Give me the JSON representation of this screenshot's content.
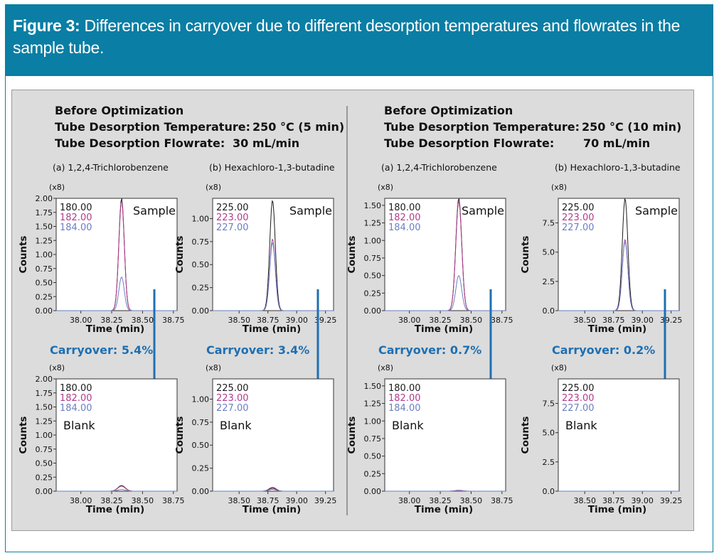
{
  "figure": {
    "label": "Figure 3:",
    "caption": " Differences in carryover due to different desorption temperatures and flowrates in the sample tube."
  },
  "colors": {
    "header_bg": "#0a7ea4",
    "panel_bg": "#dcdcdc",
    "series_180": "#1a1a1a",
    "series_182": "#b33a8c",
    "series_184": "#6a7fc0",
    "arrow": "#1f6fb2",
    "carryover_text": "#1f6fb2"
  },
  "conditions": [
    {
      "heading": "Before Optimization",
      "temp_label": "Tube Desorption Temperature:",
      "temp_value": "250 °C (5 min)",
      "flow_label": "Tube Desorption Flowrate:",
      "flow_value": "30 mL/min"
    },
    {
      "heading": "Before Optimization",
      "temp_label": "Tube Desorption Temperature:",
      "temp_value": "250 °C (10 min)",
      "flow_label": "Tube Desorption Flowrate:",
      "flow_value": "70 mL/min"
    }
  ],
  "chart_data": [
    {
      "id": "c1a-sample",
      "type": "line",
      "compound": "(a) 1,2,4-Trichlorobenzene",
      "panel_label": "Sample",
      "multiplier": "(x8)",
      "ylabel": "Counts",
      "xlabel": "Time (min)",
      "xlim": [
        37.8,
        38.78
      ],
      "ylim": [
        0,
        2.0
      ],
      "xticks": [
        38.0,
        38.25,
        38.5,
        38.75
      ],
      "xtick_labels": [
        "38.00",
        "38.25",
        "38.50",
        "38.75"
      ],
      "yticks": [
        0,
        0.25,
        0.5,
        0.75,
        1.0,
        1.25,
        1.5,
        1.75,
        2.0
      ],
      "ytick_labels": [
        "0.00",
        "0.25",
        "0.50",
        "0.75",
        "1.00",
        "1.25",
        "1.50",
        "1.75",
        "2.00"
      ],
      "peak_center": 38.33,
      "peak_width": 0.022,
      "series": [
        {
          "name": "180.00",
          "color": "#1a1a1a",
          "peak": 2.0
        },
        {
          "name": "182.00",
          "color": "#b33a8c",
          "peak": 1.96
        },
        {
          "name": "184.00",
          "color": "#6a7fc0",
          "peak": 0.6
        }
      ],
      "carryover": "Carryover: 5.4%"
    },
    {
      "id": "c1b-sample",
      "type": "line",
      "compound": "(b) Hexachloro-1,3-butadine",
      "panel_label": "Sample",
      "multiplier": "(x8)",
      "ylabel": "Counts",
      "xlabel": "Time (min)",
      "xlim": [
        38.27,
        39.32
      ],
      "ylim": [
        0,
        1.22
      ],
      "xticks": [
        38.5,
        38.75,
        39.0,
        39.25
      ],
      "xtick_labels": [
        "38.50",
        "38.75",
        "39.00",
        "39.25"
      ],
      "yticks": [
        0,
        0.25,
        0.5,
        0.75,
        1.0
      ],
      "ytick_labels": [
        "0.00",
        "0.25",
        "0.50",
        "0.75",
        "1.00"
      ],
      "peak_center": 38.79,
      "peak_width": 0.024,
      "series": [
        {
          "name": "225.00",
          "color": "#1a1a1a",
          "peak": 1.2
        },
        {
          "name": "223.00",
          "color": "#b33a8c",
          "peak": 0.78
        },
        {
          "name": "227.00",
          "color": "#6a7fc0",
          "peak": 0.74
        }
      ],
      "carryover": "Carryover: 3.4%"
    },
    {
      "id": "c2a-sample",
      "type": "line",
      "compound": "(a) 1,2,4-Trichlorobenzene",
      "panel_label": "Sample",
      "multiplier": "(x8)",
      "ylabel": "Counts",
      "xlabel": "Time (min)",
      "xlim": [
        37.8,
        38.78
      ],
      "ylim": [
        0,
        1.6
      ],
      "xticks": [
        38.0,
        38.25,
        38.5,
        38.75
      ],
      "xtick_labels": [
        "38.00",
        "38.25",
        "38.50",
        "38.75"
      ],
      "yticks": [
        0,
        0.25,
        0.5,
        0.75,
        1.0,
        1.25,
        1.5
      ],
      "ytick_labels": [
        "0.00",
        "0.25",
        "0.50",
        "0.75",
        "1.00",
        "1.25",
        "1.50"
      ],
      "peak_center": 38.4,
      "peak_width": 0.024,
      "series": [
        {
          "name": "180.00",
          "color": "#1a1a1a",
          "peak": 1.6
        },
        {
          "name": "182.00",
          "color": "#b33a8c",
          "peak": 1.56
        },
        {
          "name": "184.00",
          "color": "#6a7fc0",
          "peak": 0.5
        }
      ],
      "carryover": "Carryover: 0.7%"
    },
    {
      "id": "c2b-sample",
      "type": "line",
      "compound": "(b) Hexachloro-1,3-butadine",
      "panel_label": "Sample",
      "multiplier": "(x8)",
      "ylabel": "Counts",
      "xlabel": "Time (min)",
      "xlim": [
        38.27,
        39.32
      ],
      "ylim": [
        0,
        9.6
      ],
      "xticks": [
        38.5,
        38.75,
        39.0,
        39.25
      ],
      "xtick_labels": [
        "38.50",
        "38.75",
        "39.00",
        "39.25"
      ],
      "yticks": [
        0,
        2.5,
        5.0,
        7.5
      ],
      "ytick_labels": [
        "0.0",
        "2.5",
        "5.0",
        "7.5"
      ],
      "peak_center": 38.85,
      "peak_width": 0.024,
      "series": [
        {
          "name": "225.00",
          "color": "#1a1a1a",
          "peak": 9.6
        },
        {
          "name": "223.00",
          "color": "#b33a8c",
          "peak": 6.1
        },
        {
          "name": "227.00",
          "color": "#6a7fc0",
          "peak": 5.9
        }
      ],
      "carryover": "Carryover: 0.2%"
    },
    {
      "id": "c1a-blank",
      "type": "line",
      "compound": "(a) 1,2,4-Trichlorobenzene",
      "panel_label": "Blank",
      "multiplier": "(x8)",
      "ylabel": "Counts",
      "xlabel": "Time (min)",
      "xlim": [
        37.8,
        38.78
      ],
      "ylim": [
        0,
        2.0
      ],
      "xticks": [
        38.0,
        38.25,
        38.5,
        38.75
      ],
      "xtick_labels": [
        "38.00",
        "38.25",
        "38.50",
        "38.75"
      ],
      "yticks": [
        0,
        0.25,
        0.5,
        0.75,
        1.0,
        1.25,
        1.5,
        1.75,
        2.0
      ],
      "ytick_labels": [
        "0.00",
        "0.25",
        "0.50",
        "0.75",
        "1.00",
        "1.25",
        "1.50",
        "1.75",
        "2.00"
      ],
      "peak_center": 38.33,
      "peak_width": 0.03,
      "series": [
        {
          "name": "180.00",
          "color": "#1a1a1a",
          "peak": 0.1
        },
        {
          "name": "182.00",
          "color": "#b33a8c",
          "peak": 0.09
        },
        {
          "name": "184.00",
          "color": "#6a7fc0",
          "peak": 0.03
        }
      ]
    },
    {
      "id": "c1b-blank",
      "type": "line",
      "compound": "(b) Hexachloro-1,3-butadine",
      "panel_label": "Blank",
      "multiplier": "(x8)",
      "ylabel": "Counts",
      "xlabel": "Time (min)",
      "xlim": [
        38.27,
        39.32
      ],
      "ylim": [
        0,
        1.22
      ],
      "xticks": [
        38.5,
        38.75,
        39.0,
        39.25
      ],
      "xtick_labels": [
        "38.50",
        "38.75",
        "39.00",
        "39.25"
      ],
      "yticks": [
        0,
        0.25,
        0.5,
        0.75,
        1.0
      ],
      "ytick_labels": [
        "0.00",
        "0.25",
        "0.50",
        "0.75",
        "1.00"
      ],
      "peak_center": 38.79,
      "peak_width": 0.03,
      "series": [
        {
          "name": "225.00",
          "color": "#1a1a1a",
          "peak": 0.04
        },
        {
          "name": "223.00",
          "color": "#b33a8c",
          "peak": 0.03
        },
        {
          "name": "227.00",
          "color": "#6a7fc0",
          "peak": 0.02
        }
      ]
    },
    {
      "id": "c2a-blank",
      "type": "line",
      "compound": "(a) 1,2,4-Trichlorobenzene",
      "panel_label": "Blank",
      "multiplier": "(x8)",
      "ylabel": "Counts",
      "xlabel": "Time (min)",
      "xlim": [
        37.8,
        38.78
      ],
      "ylim": [
        0,
        1.6
      ],
      "xticks": [
        38.0,
        38.25,
        38.5,
        38.75
      ],
      "xtick_labels": [
        "38.00",
        "38.25",
        "38.50",
        "38.75"
      ],
      "yticks": [
        0,
        0.25,
        0.5,
        0.75,
        1.0,
        1.25,
        1.5
      ],
      "ytick_labels": [
        "0.00",
        "0.25",
        "0.50",
        "0.75",
        "1.00",
        "1.25",
        "1.50"
      ],
      "peak_center": 38.4,
      "peak_width": 0.03,
      "series": [
        {
          "name": "180.00",
          "color": "#1a1a1a",
          "peak": 0.012
        },
        {
          "name": "182.00",
          "color": "#b33a8c",
          "peak": 0.01
        },
        {
          "name": "184.00",
          "color": "#6a7fc0",
          "peak": 0.004
        }
      ]
    },
    {
      "id": "c2b-blank",
      "type": "line",
      "compound": "(b) Hexachloro-1,3-butadine",
      "panel_label": "Blank",
      "multiplier": "(x8)",
      "ylabel": "Counts",
      "xlabel": "Time (min)",
      "xlim": [
        38.27,
        39.32
      ],
      "ylim": [
        0,
        9.6
      ],
      "xticks": [
        38.5,
        38.75,
        39.0,
        39.25
      ],
      "xtick_labels": [
        "38.50",
        "38.75",
        "39.00",
        "39.25"
      ],
      "yticks": [
        0,
        2.5,
        5.0,
        7.5
      ],
      "ytick_labels": [
        "0.0",
        "2.5",
        "5.0",
        "7.5"
      ],
      "peak_center": 38.85,
      "peak_width": 0.03,
      "series": [
        {
          "name": "225.00",
          "color": "#1a1a1a",
          "peak": 0.0
        },
        {
          "name": "223.00",
          "color": "#b33a8c",
          "peak": 0.0
        },
        {
          "name": "227.00",
          "color": "#6a7fc0",
          "peak": 0.0
        }
      ]
    }
  ]
}
